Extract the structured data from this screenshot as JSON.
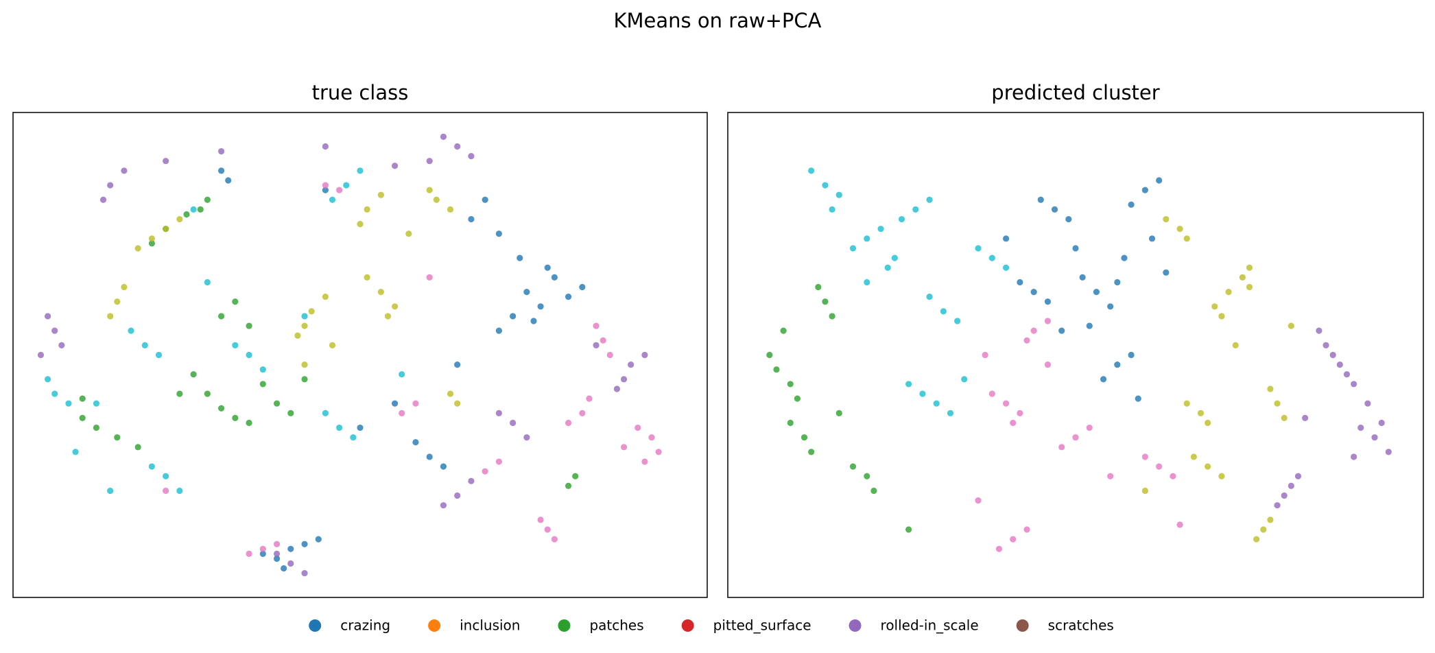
{
  "title": "KMeans on raw+PCA",
  "legend": [
    {
      "name": "crazing",
      "color": "#1f77b4"
    },
    {
      "name": "inclusion",
      "color": "#ff7f0e"
    },
    {
      "name": "patches",
      "color": "#2ca02c"
    },
    {
      "name": "pitted_surface",
      "color": "#d62728"
    },
    {
      "name": "rolled-in_scale",
      "color": "#9467bd"
    },
    {
      "name": "scratches",
      "color": "#8c564b"
    }
  ],
  "chart_data": [
    {
      "type": "scatter",
      "title": "true class",
      "xlim": [
        0,
        100
      ],
      "ylim": [
        0,
        100
      ],
      "series": [
        {
          "color": "#1f77b4",
          "x": [
            74,
            76,
            78,
            72,
            80,
            70,
            77,
            75,
            82,
            73,
            68,
            66,
            70,
            60,
            58,
            62,
            40,
            38,
            42,
            36,
            44,
            39,
            31,
            30,
            45,
            64,
            55,
            50
          ],
          "values": [
            63,
            60,
            66,
            58,
            62,
            55,
            68,
            57,
            64,
            70,
            82,
            78,
            75,
            29,
            32,
            27,
            10,
            8,
            11,
            9,
            12,
            6,
            86,
            88,
            84,
            48,
            40,
            35
          ]
        },
        {
          "color": "#2ca02c",
          "x": [
            25,
            22,
            28,
            20,
            27,
            38,
            36,
            40,
            34,
            30,
            28,
            32,
            15,
            12,
            18,
            10,
            32,
            30,
            34,
            81,
            80,
            24,
            26,
            42,
            10
          ],
          "values": [
            79,
            76,
            82,
            73,
            80,
            40,
            44,
            38,
            36,
            39,
            42,
            37,
            33,
            35,
            31,
            37,
            61,
            58,
            56,
            25,
            23,
            42,
            46,
            45,
            41
          ]
        },
        {
          "color": "#9467bd",
          "x": [
            6,
            5,
            7,
            4,
            14,
            13,
            16,
            64,
            62,
            66,
            60,
            89,
            88,
            91,
            87,
            64,
            66,
            62,
            40,
            42,
            38,
            72,
            74,
            70,
            30,
            22,
            45,
            55,
            84
          ],
          "values": [
            55,
            58,
            52,
            50,
            85,
            82,
            88,
            93,
            95,
            91,
            90,
            48,
            45,
            50,
            43,
            21,
            24,
            19,
            7,
            5,
            9,
            36,
            33,
            38,
            92,
            90,
            93,
            89,
            52
          ]
        },
        {
          "color": "#e377c2",
          "x": [
            92,
            93,
            90,
            88,
            91,
            82,
            83,
            80,
            77,
            78,
            76,
            85,
            86,
            84,
            56,
            58,
            36,
            34,
            38,
            68,
            70,
            45,
            47,
            22,
            60
          ],
          "values": [
            33,
            30,
            35,
            31,
            28,
            38,
            41,
            36,
            14,
            12,
            16,
            53,
            50,
            56,
            38,
            40,
            10,
            9,
            11,
            26,
            28,
            85,
            84,
            22,
            66
          ]
        },
        {
          "color": "#bcbd22",
          "x": [
            15,
            14,
            16,
            20,
            22,
            18,
            24,
            53,
            55,
            51,
            54,
            43,
            42,
            45,
            41,
            64,
            63,
            61,
            60,
            63,
            51,
            50,
            53,
            57,
            42,
            46
          ],
          "values": [
            61,
            58,
            64,
            74,
            76,
            72,
            78,
            63,
            60,
            66,
            58,
            59,
            56,
            62,
            54,
            40,
            42,
            82,
            84,
            80,
            80,
            77,
            83,
            75,
            48,
            52
          ]
        },
        {
          "color": "#17becf",
          "x": [
            6,
            5,
            8,
            19,
            17,
            21,
            34,
            36,
            32,
            47,
            49,
            45,
            22,
            24,
            20,
            48,
            50,
            46,
            28,
            14,
            12,
            42,
            56,
            9,
            26
          ],
          "values": [
            42,
            45,
            40,
            52,
            55,
            50,
            50,
            47,
            52,
            35,
            33,
            38,
            25,
            22,
            27,
            85,
            88,
            82,
            65,
            22,
            40,
            58,
            46,
            30,
            80
          ]
        }
      ]
    },
    {
      "type": "scatter",
      "title": "predicted cluster",
      "xlim": [
        0,
        100
      ],
      "ylim": [
        0,
        100
      ],
      "series": [
        {
          "color": "#17becf",
          "x": [
            20,
            18,
            22,
            24,
            27,
            25,
            29,
            14,
            12,
            16,
            30,
            28,
            32,
            31,
            33,
            29,
            38,
            36,
            40,
            20,
            23,
            15,
            34,
            26
          ],
          "values": [
            74,
            72,
            76,
            70,
            80,
            78,
            82,
            85,
            88,
            83,
            40,
            42,
            38,
            59,
            57,
            62,
            70,
            72,
            68,
            65,
            68,
            80,
            45,
            44
          ]
        },
        {
          "color": "#2ca02c",
          "x": [
            9,
            7,
            10,
            6,
            14,
            13,
            15,
            11,
            12,
            9,
            20,
            21,
            18,
            8,
            16,
            26
          ],
          "values": [
            44,
            47,
            41,
            50,
            61,
            64,
            58,
            33,
            30,
            36,
            25,
            22,
            27,
            55,
            38,
            14
          ]
        },
        {
          "color": "#1f77b4",
          "x": [
            53,
            55,
            51,
            56,
            47,
            45,
            49,
            60,
            62,
            58,
            56,
            54,
            58,
            44,
            42,
            46,
            50,
            52,
            57,
            61,
            48,
            59,
            40,
            63
          ],
          "values": [
            63,
            60,
            66,
            65,
            80,
            82,
            78,
            84,
            86,
            81,
            48,
            45,
            50,
            63,
            65,
            61,
            72,
            56,
            70,
            74,
            55,
            41,
            74,
            67
          ]
        },
        {
          "color": "#e377c2",
          "x": [
            40,
            38,
            42,
            41,
            44,
            46,
            43,
            41,
            39,
            43,
            50,
            48,
            52,
            62,
            60,
            64,
            36,
            46,
            55,
            37,
            65
          ],
          "values": [
            40,
            42,
            38,
            36,
            55,
            57,
            53,
            12,
            10,
            14,
            33,
            31,
            35,
            27,
            29,
            25,
            20,
            48,
            25,
            50,
            15
          ]
        },
        {
          "color": "#bcbd22",
          "x": [
            72,
            70,
            74,
            71,
            75,
            68,
            66,
            69,
            79,
            78,
            80,
            77,
            76,
            78,
            69,
            71,
            67,
            65,
            66,
            63,
            73,
            81,
            75,
            60
          ],
          "values": [
            63,
            60,
            66,
            58,
            64,
            38,
            40,
            36,
            40,
            43,
            37,
            14,
            12,
            16,
            27,
            25,
            29,
            76,
            74,
            78,
            52,
            56,
            68,
            22
          ]
        },
        {
          "color": "#9467bd",
          "x": [
            93,
            95,
            91,
            94,
            89,
            88,
            90,
            81,
            80,
            82,
            86,
            85,
            87,
            92,
            90,
            79,
            83
          ],
          "values": [
            33,
            30,
            35,
            36,
            46,
            48,
            44,
            23,
            21,
            25,
            52,
            55,
            50,
            40,
            29,
            19,
            37
          ]
        }
      ]
    }
  ]
}
